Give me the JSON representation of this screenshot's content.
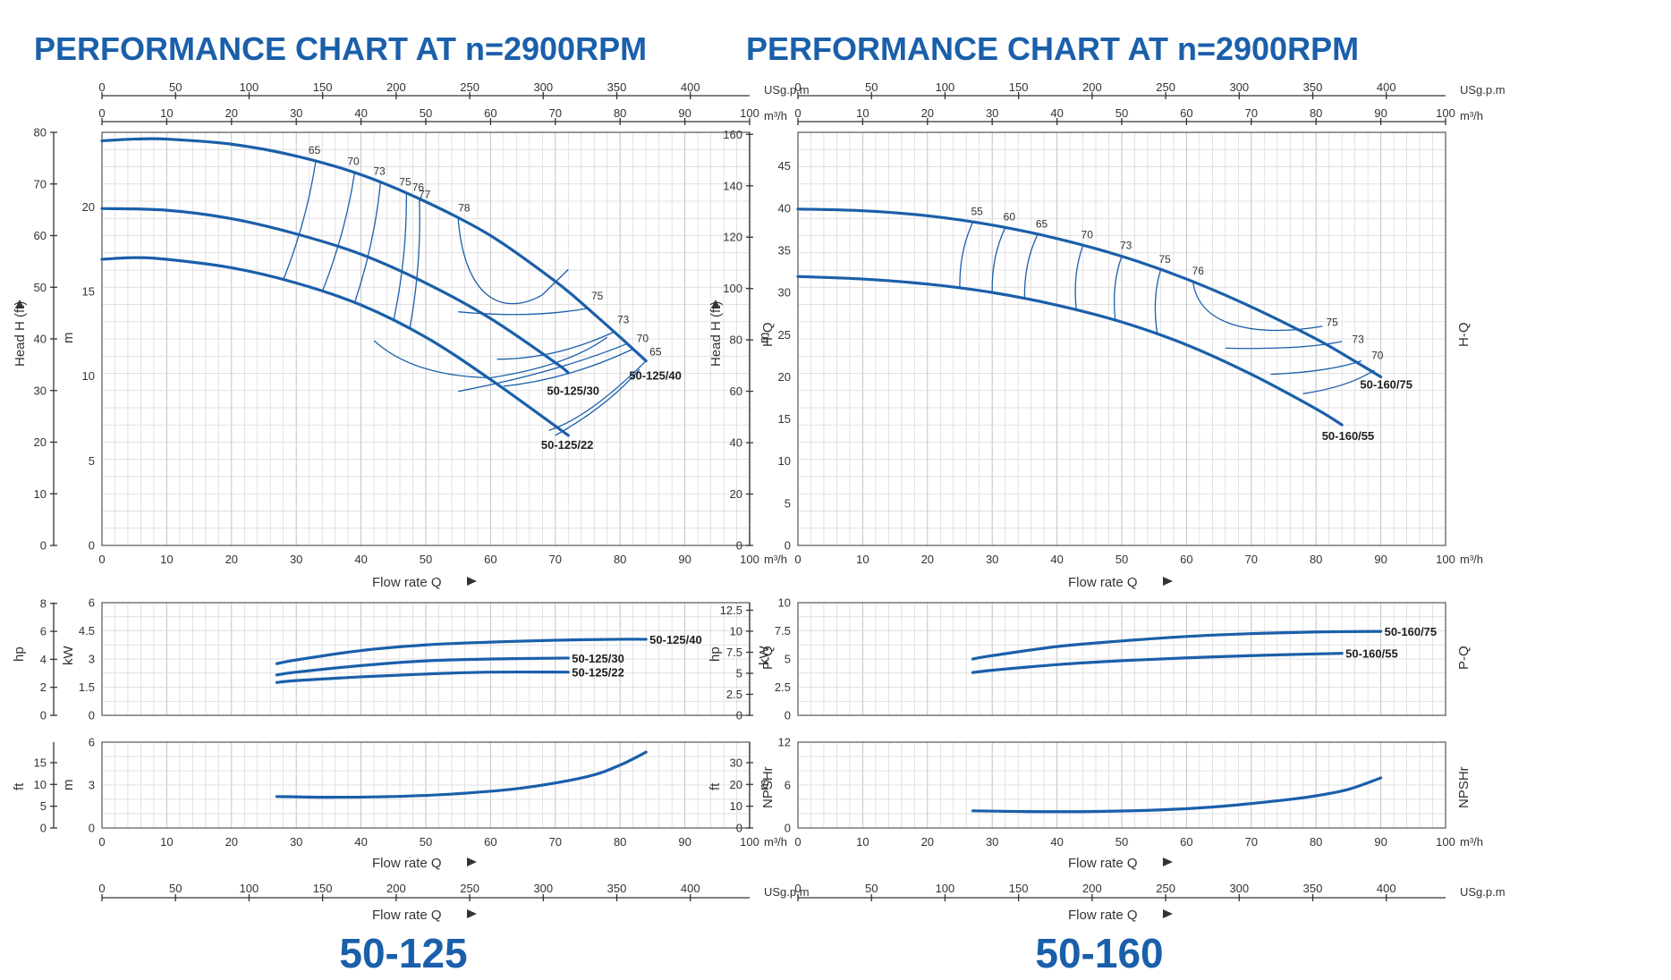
{
  "colors": {
    "curve": "#1a5faa",
    "title": "#1a5faa",
    "grid": "#d6d6d6"
  },
  "charts": [
    {
      "title": "PERFORMANCE CHART AT n=2900RPM",
      "model": "50-125",
      "labels": {
        "usgpm": "USg.p.m",
        "m3h": "m³/h",
        "flow": "Flow rate Q",
        "head_ft": "Head H (ft)",
        "m": "m",
        "hp": "hp",
        "kw": "kW",
        "ft": "ft",
        "hq": "H-Q",
        "pq": "P-Q",
        "npshr": "NPSHr"
      },
      "ticks": {
        "q": [
          "0",
          "10",
          "20",
          "30",
          "40",
          "50",
          "60",
          "70",
          "80",
          "90",
          "100"
        ],
        "usgpm": [
          "0",
          "50",
          "100",
          "150",
          "200",
          "250",
          "300",
          "350",
          "400"
        ],
        "head_m": [
          "5",
          "10",
          "15",
          "20"
        ],
        "head_ft": [
          "0",
          "10",
          "20",
          "30",
          "40",
          "50",
          "60",
          "70",
          "80"
        ],
        "power_kw": [
          "0",
          "1.5",
          "3",
          "4.5",
          "6"
        ],
        "power_hp": [
          "0",
          "2",
          "4",
          "6",
          "8"
        ],
        "npsh_m": [
          "0",
          "3",
          "6"
        ],
        "npsh_ft": [
          "0",
          "5",
          "10",
          "15"
        ]
      }
    },
    {
      "title": "PERFORMANCE CHART AT n=2900RPM",
      "model": "50-160",
      "labels": {
        "usgpm": "USg.p.m",
        "m3h": "m³/h",
        "flow": "Flow rate Q",
        "head_ft": "Head H (ft)",
        "m": "m",
        "hp": "hp",
        "kw": "kW",
        "ft": "ft",
        "hq": "H-Q",
        "pq": "P-Q",
        "npshr": "NPSHr"
      },
      "ticks": {
        "q": [
          "0",
          "10",
          "20",
          "30",
          "40",
          "50",
          "60",
          "70",
          "80",
          "90",
          "100"
        ],
        "usgpm": [
          "0",
          "50",
          "100",
          "150",
          "200",
          "250",
          "300",
          "350",
          "400"
        ],
        "head_m": [
          "0",
          "5",
          "10",
          "15",
          "20",
          "25",
          "30",
          "35",
          "40",
          "45"
        ],
        "head_ft": [
          "0",
          "20",
          "40",
          "60",
          "80",
          "100",
          "120",
          "140",
          "160"
        ],
        "power_kw": [
          "0",
          "2.5",
          "5",
          "7.5",
          "10"
        ],
        "power_hp": [
          "0",
          "2.5",
          "5",
          "7.5",
          "10",
          "12.5"
        ],
        "npsh_m": [
          "0",
          "6",
          "12"
        ],
        "npsh_ft": [
          "0",
          "10",
          "20",
          "30"
        ]
      }
    }
  ],
  "chart_data": [
    {
      "type": "line",
      "title": "PERFORMANCE CHART AT n=2900RPM",
      "subtitle": "50-125",
      "xlabel": "Flow rate Q",
      "x_unit": "m³/h",
      "xlim": [
        0,
        100
      ],
      "x2_unit": "USg.p.m",
      "x2lim": [
        0,
        440.3
      ],
      "head": {
        "ylim_m": [
          0,
          24.4
        ],
        "ylim_ft": [
          0,
          80
        ],
        "series": [
          {
            "name": "50-125/40",
            "x": [
              0,
              5,
              10,
              20,
              30,
              40,
              50,
              60,
              70,
              75,
              80,
              84
            ],
            "y": [
              23.9,
              24.0,
              24.0,
              23.7,
              23.0,
              21.9,
              20.3,
              18.3,
              15.6,
              14.0,
              12.3,
              10.9
            ]
          },
          {
            "name": "50-125/30",
            "x": [
              0,
              10,
              20,
              30,
              40,
              50,
              60,
              70,
              72
            ],
            "y": [
              19.9,
              19.8,
              19.3,
              18.4,
              17.2,
              15.5,
              13.4,
              10.8,
              10.2
            ]
          },
          {
            "name": "50-125/22",
            "x": [
              0,
              5,
              10,
              20,
              30,
              40,
              50,
              60,
              72
            ],
            "y": [
              16.9,
              17.0,
              16.9,
              16.4,
              15.5,
              14.2,
              12.3,
              9.8,
              6.5
            ]
          }
        ],
        "efficiency_labels": [
          "65",
          "70",
          "73",
          "75",
          "76",
          "77",
          "78",
          "75",
          "73",
          "70",
          "65"
        ]
      },
      "power": {
        "ylim_kw": [
          0,
          6
        ],
        "ylim_hp": [
          0,
          8
        ],
        "series": [
          {
            "name": "50-125/40",
            "x": [
              27,
              30,
              40,
              50,
              60,
              70,
              80,
              84
            ],
            "y": [
              2.75,
              2.95,
              3.45,
              3.75,
              3.9,
              4.0,
              4.05,
              4.05
            ]
          },
          {
            "name": "50-125/30",
            "x": [
              27,
              30,
              40,
              50,
              60,
              72
            ],
            "y": [
              2.15,
              2.3,
              2.65,
              2.9,
              3.0,
              3.05
            ]
          },
          {
            "name": "50-125/22",
            "x": [
              27,
              30,
              40,
              50,
              60,
              72
            ],
            "y": [
              1.75,
              1.85,
              2.05,
              2.2,
              2.3,
              2.3
            ]
          }
        ]
      },
      "npshr": {
        "ylim_m": [
          0,
          6
        ],
        "ylim_ft": [
          0,
          19.7
        ],
        "series": [
          {
            "name": "NPSHr",
            "x": [
              27,
              35,
              45,
              55,
              65,
              75,
              80,
              84
            ],
            "y": [
              2.2,
              2.15,
              2.2,
              2.4,
              2.8,
              3.6,
              4.4,
              5.3
            ]
          }
        ]
      }
    },
    {
      "type": "line",
      "title": "PERFORMANCE CHART AT n=2900RPM",
      "subtitle": "50-160",
      "xlabel": "Flow rate Q",
      "x_unit": "m³/h",
      "xlim": [
        0,
        100
      ],
      "x2_unit": "USg.p.m",
      "x2lim": [
        0,
        440.3
      ],
      "head": {
        "ylim_m": [
          0,
          49
        ],
        "ylim_ft": [
          0,
          160
        ],
        "series": [
          {
            "name": "50-160/75",
            "x": [
              0,
              10,
              20,
              30,
              40,
              50,
              60,
              70,
              80,
              85,
              90
            ],
            "y": [
              39.9,
              39.7,
              39.1,
              38.0,
              36.4,
              34.3,
              31.6,
              28.3,
              24.5,
              22.3,
              20.0
            ]
          },
          {
            "name": "50-160/55",
            "x": [
              0,
              10,
              20,
              30,
              40,
              50,
              60,
              70,
              80,
              84
            ],
            "y": [
              31.9,
              31.6,
              31.0,
              30.0,
              28.5,
              26.5,
              23.8,
              20.3,
              16.2,
              14.3
            ]
          }
        ],
        "efficiency_labels": [
          "55",
          "60",
          "65",
          "70",
          "73",
          "75",
          "76",
          "75",
          "73",
          "70"
        ]
      },
      "power": {
        "ylim_kw": [
          0,
          10
        ],
        "ylim_hp": [
          0,
          13.4
        ],
        "series": [
          {
            "name": "50-160/75",
            "x": [
              27,
              30,
              40,
              50,
              60,
              70,
              80,
              90
            ],
            "y": [
              5.0,
              5.3,
              6.1,
              6.6,
              7.0,
              7.25,
              7.4,
              7.45
            ]
          },
          {
            "name": "50-160/55",
            "x": [
              27,
              30,
              40,
              50,
              60,
              70,
              80,
              84
            ],
            "y": [
              3.8,
              4.0,
              4.5,
              4.85,
              5.1,
              5.3,
              5.45,
              5.5
            ]
          }
        ]
      },
      "npshr": {
        "ylim_m": [
          0,
          12
        ],
        "ylim_ft": [
          0,
          39.4
        ],
        "series": [
          {
            "name": "NPSHr",
            "x": [
              27,
              35,
              45,
              55,
              65,
              75,
              80,
              85,
              90
            ],
            "y": [
              2.4,
              2.3,
              2.3,
              2.5,
              3.0,
              3.9,
              4.5,
              5.4,
              7.0
            ]
          }
        ]
      }
    }
  ]
}
